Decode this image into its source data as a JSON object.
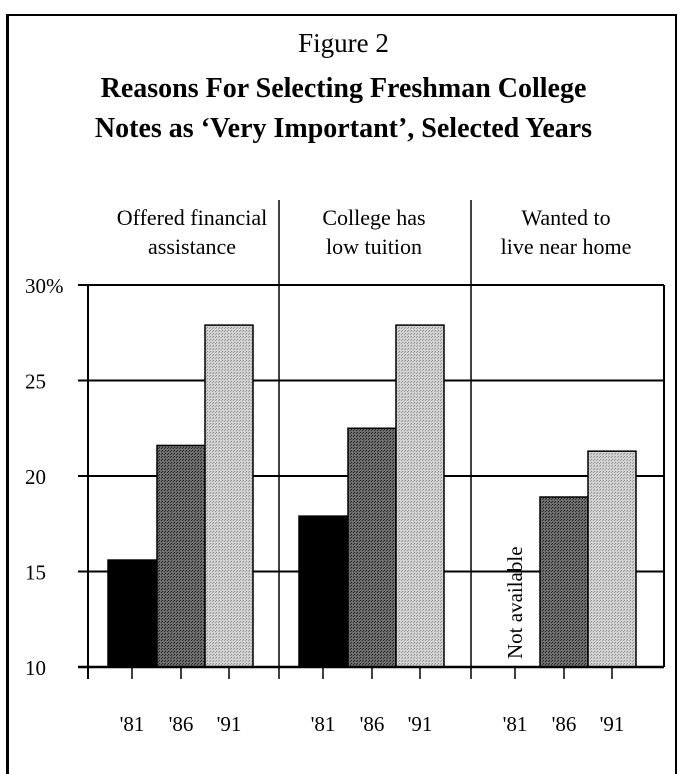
{
  "figure_label": "Figure 2",
  "title_lines": [
    "Reasons For Selecting Freshman College",
    "Notes as ‘Very Important’, Selected Years"
  ],
  "colors": {
    "y1981": "#000000",
    "y1986": "#4a4a4a",
    "y1991": "#c4c4c4"
  },
  "chart_data": {
    "type": "bar",
    "title": "Reasons For Selecting Freshman College Notes as ‘Very Important’, Selected Years",
    "ylim": [
      10,
      30
    ],
    "yticks": [
      {
        "value": 30,
        "label": "30%"
      },
      {
        "value": 25,
        "label": "25"
      },
      {
        "value": 20,
        "label": "20"
      },
      {
        "value": 15,
        "label": "15"
      },
      {
        "value": 10,
        "label": "10"
      }
    ],
    "categories": [
      "'81",
      "'86",
      "'91"
    ],
    "grid": true,
    "panels": [
      {
        "title_lines": [
          "Offered financial",
          "assistance"
        ],
        "values": [
          15.6,
          21.6,
          27.9
        ]
      },
      {
        "title_lines": [
          "College has",
          "low tuition"
        ],
        "values": [
          17.9,
          22.5,
          27.9
        ]
      },
      {
        "title_lines": [
          "Wanted to",
          "live near home"
        ],
        "values": [
          null,
          18.9,
          21.3
        ],
        "annotation": "Not available"
      }
    ]
  }
}
